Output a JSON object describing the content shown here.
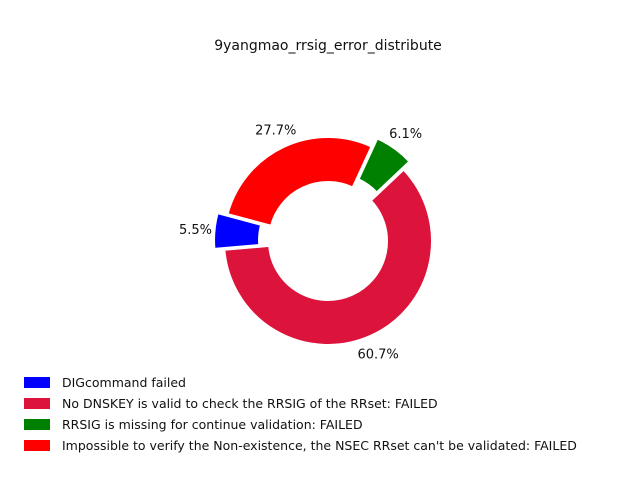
{
  "chart_data": {
    "type": "pie",
    "title": "9yangmao_rrsig_error_distribute",
    "donut": true,
    "slices": [
      {
        "label": "DIGcommand failed",
        "value": 5.5,
        "display": "5.5%",
        "color": "#0000ff",
        "exploded": true
      },
      {
        "label": "No DNSKEY is valid to check the RRSIG of the RRset: FAILED",
        "value": 60.7,
        "display": "60.7%",
        "color": "#dc143c",
        "exploded": false
      },
      {
        "label": "RRSIG is missing for continue validation: FAILED",
        "value": 6.1,
        "display": "6.1%",
        "color": "#008000",
        "exploded": true
      },
      {
        "label": "Impossible to verify the Non-existence, the NSEC RRset can't be validated: FAILED",
        "value": 27.7,
        "display": "27.7%",
        "color": "#ff0000",
        "exploded": false
      }
    ],
    "legend_position": "bottom-left"
  }
}
